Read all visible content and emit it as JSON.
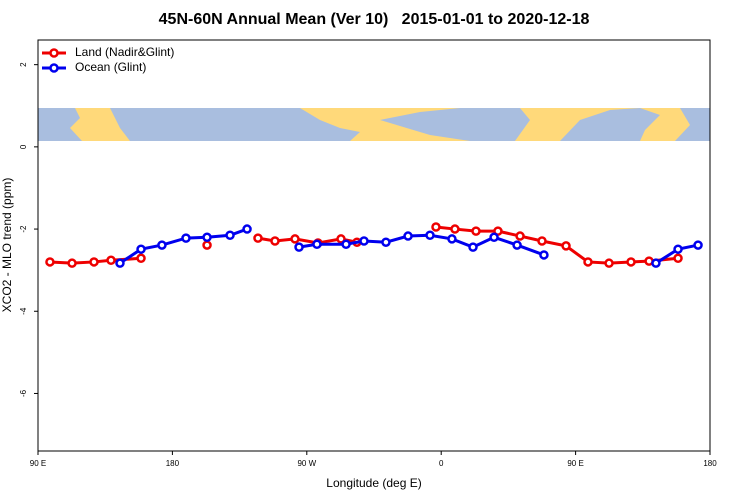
{
  "chart_data": {
    "type": "line",
    "title": "45N-60N Annual Mean (Ver 10)   2015-01-01 to 2020-12-18",
    "x_label": "Longitude (deg E)",
    "y_label": "XCO2 - MLO trend (ppm)",
    "xlim": [
      90,
      540
    ],
    "xticks": [
      {
        "value": 90,
        "label": "90 E"
      },
      {
        "value": 180,
        "label": "180"
      },
      {
        "value": 270,
        "label": "90 W"
      },
      {
        "value": 360,
        "label": "0"
      },
      {
        "value": 450,
        "label": "90 E"
      },
      {
        "value": 540,
        "label": "180"
      }
    ],
    "ylim": [
      -7.4,
      2.6
    ],
    "yticks": [
      2,
      0,
      -2,
      -4,
      -6
    ],
    "legend": "top-left",
    "series": [
      {
        "name": "Land (Nadir&Glint)",
        "color": "#ee0000",
        "x": [
          98,
          112.8,
          127.5,
          138.9,
          159,
          null,
          203.2,
          null,
          237.3,
          248.7,
          262.1,
          277.5,
          292.9,
          303.6,
          null,
          356.5,
          369.2,
          383.3,
          398,
          412.8,
          427.5,
          443.6,
          458.3,
          472.4,
          487.1,
          499.2,
          518.6
        ],
        "values": [
          -2.8,
          -2.83,
          -2.8,
          -2.76,
          -2.71,
          null,
          -2.39,
          null,
          -2.22,
          -2.29,
          -2.24,
          -2.34,
          -2.24,
          -2.32,
          null,
          -1.95,
          -2.0,
          -2.05,
          -2.05,
          -2.17,
          -2.29,
          -2.41,
          -2.8,
          -2.83,
          -2.8,
          -2.78,
          -2.71
        ]
      },
      {
        "name": "Ocean (Glint)",
        "color": "#0000ee",
        "x": [
          144.9,
          159,
          173,
          189.1,
          203.2,
          218.6,
          230,
          null,
          264.8,
          276.8,
          296.3,
          308.3,
          323,
          337.8,
          352.5,
          367.2,
          381.3,
          395.4,
          410.8,
          428.8,
          null,
          503.8,
          518.6,
          532
        ],
        "values": [
          -2.83,
          -2.49,
          -2.39,
          -2.22,
          -2.2,
          -2.15,
          -2.0,
          null,
          -2.44,
          -2.37,
          -2.37,
          -2.29,
          -2.32,
          -2.17,
          -2.15,
          -2.24,
          -2.44,
          -2.2,
          -2.39,
          -2.63,
          null,
          -2.83,
          -2.49,
          -2.39
        ]
      }
    ]
  }
}
